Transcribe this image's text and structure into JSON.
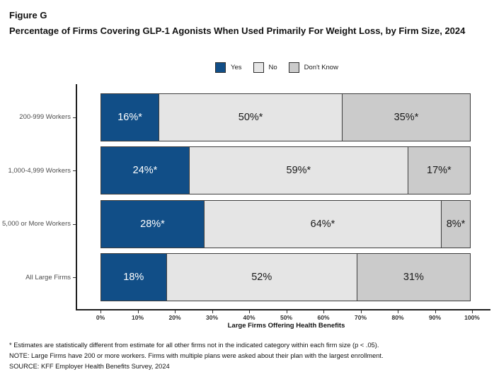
{
  "figure": {
    "footnotes": [
      "* Estimates are statistically different from estimate for all other firms not in the indicated category within each firm size (p < .05).",
      "NOTE: Large Firms have 200 or more workers.  Firms with multiple plans were asked about their plan with the largest enrollment.",
      "SOURCE: KFF Employer Health Benefits Survey, 2024"
    ]
  },
  "chart_data": {
    "type": "bar",
    "orientation": "horizontal-stacked",
    "figure_label": "Figure G",
    "title": "Percentage of Firms Covering GLP-1 Agonists When Used Primarily For Weight Loss, by Firm Size, 2024",
    "categories": [
      "200-999 Workers",
      "1,000-4,999 Workers",
      "5,000 or More Workers",
      "All Large Firms"
    ],
    "series": [
      {
        "name": "Yes",
        "color": "#114E87",
        "text_color": "#FFFFFF",
        "values": [
          16,
          24,
          28,
          18
        ],
        "labels": [
          "16%*",
          "24%*",
          "28%*",
          "18%"
        ]
      },
      {
        "name": "No",
        "color": "#E5E5E5",
        "text_color": "#1A1A1A",
        "values": [
          50,
          59,
          64,
          52
        ],
        "labels": [
          "50%*",
          "59%*",
          "64%*",
          "52%"
        ]
      },
      {
        "name": "Don't Know",
        "color": "#CBCBCB",
        "text_color": "#1A1A1A",
        "values": [
          35,
          17,
          8,
          31
        ],
        "labels": [
          "35%*",
          "17%*",
          "8%*",
          "31%"
        ]
      }
    ],
    "xlabel": "Large Firms Offering Health Benefits",
    "x_ticks": [
      "0%",
      "10%",
      "20%",
      "30%",
      "40%",
      "50%",
      "60%",
      "70%",
      "80%",
      "90%",
      "100%"
    ],
    "xlim": [
      0,
      100
    ],
    "legend_position": "top",
    "grid": false
  }
}
